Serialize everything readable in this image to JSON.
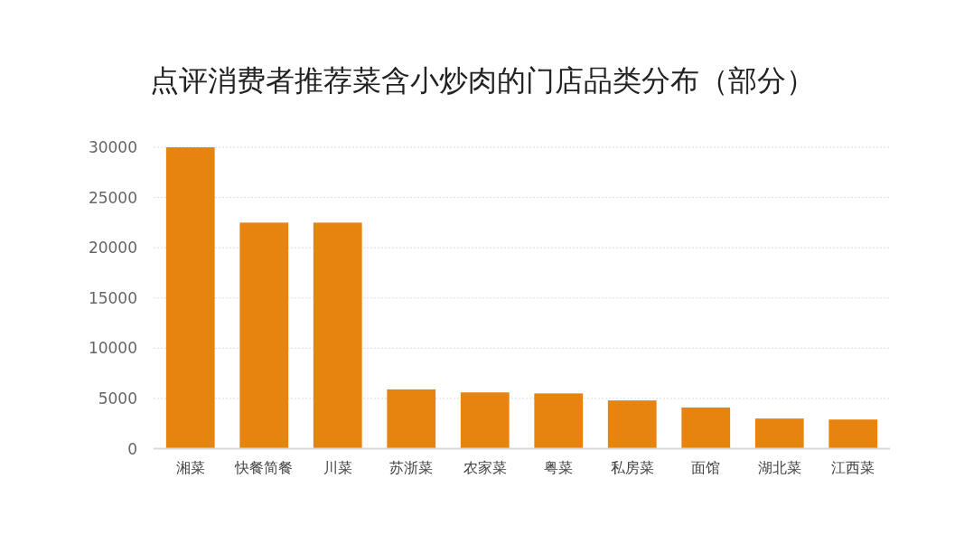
{
  "chart_data": {
    "type": "bar",
    "title": "点评消费者推荐菜含小炒肉的门店品类分布（部分）",
    "categories": [
      "湘菜",
      "快餐简餐",
      "川菜",
      "苏浙菜",
      "农家菜",
      "粤菜",
      "私房菜",
      "面馆",
      "湖北菜",
      "江西菜"
    ],
    "values": [
      30000,
      22500,
      22500,
      5900,
      5600,
      5500,
      4800,
      4100,
      3000,
      2900
    ],
    "color": "#e6840f",
    "ylim": [
      0,
      30000
    ],
    "yticks": [
      0,
      5000,
      10000,
      15000,
      20000,
      25000,
      30000
    ],
    "grid": "y",
    "legend": false
  }
}
